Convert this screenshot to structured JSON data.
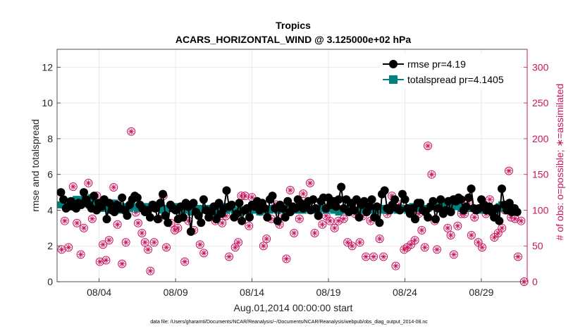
{
  "chart_data": {
    "type": "line",
    "title": "Tropics",
    "subtitle": "ACARS_HORIZONTAL_WIND @ 3.125000e+02 hPa",
    "xlabel": "Aug.01,2014 00:00:00 start",
    "ylabel": "rmse and totalspread",
    "ylabel_right": "# of obs: o=possible; ∗=assimilated",
    "x_ticks": [
      "08/04",
      "08/09",
      "08/14",
      "08/19",
      "08/24",
      "08/29"
    ],
    "x_tick_days": [
      3,
      8,
      13,
      18,
      23,
      28
    ],
    "xlim": [
      0.25,
      31.0
    ],
    "ylim": [
      0,
      13
    ],
    "y_ticks": [
      "0",
      "2",
      "4",
      "6",
      "8",
      "10",
      "12"
    ],
    "ylim_right": [
      0,
      325
    ],
    "y_ticks_right": [
      "0",
      "50",
      "100",
      "150",
      "200",
      "250",
      "300"
    ],
    "grid": true,
    "legend_position": "top-right",
    "legend": [
      "rmse pr=4.19",
      "totalspread pr=4.1405"
    ],
    "footnote": "data file: /Users/gharamti/Documents/NCAR/Reanalysis/~/Documents/NCAR/Reanalysis/webpub/obs_diag_output_2014-08.nc",
    "colors": {
      "rmse": "#000000",
      "spread": "#00807f",
      "obs": "#c8155f"
    },
    "series": [
      {
        "name": "rmse",
        "values": [
          5.0,
          4.6,
          4.1,
          4.2,
          4.5,
          4.2,
          4.1,
          4.4,
          4.3,
          5.0,
          4.6,
          4.3,
          4.1,
          4.8,
          4.0,
          4.4,
          4.2,
          4.6,
          3.5,
          4.4,
          4.0,
          3.9,
          4.3,
          4.1,
          4.7,
          4.0,
          3.7,
          4.3,
          4.6,
          4.8,
          4.7,
          4.3,
          4.1,
          3.9,
          4.0,
          3.6,
          4.3,
          4.1,
          3.5,
          4.4,
          4.9,
          3.7,
          3.3,
          4.3,
          4.1,
          4.0,
          3.5,
          4.2,
          3.6,
          4.4,
          4.2,
          2.8,
          4.4,
          3.9,
          3.7,
          3.3,
          4.6,
          4.0,
          3.6,
          3.9,
          4.2,
          3.5,
          4.4,
          3.8,
          4.1,
          5.1,
          4.2,
          4.3,
          3.6,
          3.8,
          4.4,
          3.4,
          4.0,
          4.1,
          3.6,
          4.3,
          4.2,
          4.5,
          4.0,
          4.4,
          4.1,
          3.6,
          4.6,
          4.8,
          4.1,
          3.4,
          4.3,
          4.1,
          3.6,
          4.5,
          3.9,
          4.2,
          4.1,
          4.6,
          4.4,
          4.1,
          4.3,
          4.5,
          4.0,
          4.6,
          4.1,
          3.7,
          4.5,
          4.7,
          4.1,
          4.7,
          4.3,
          4.5,
          4.2,
          4.6,
          5.3,
          4.1,
          4.6,
          3.9,
          4.4,
          4.0,
          4.6,
          3.6,
          4.3,
          4.5,
          3.9,
          4.2,
          4.6,
          3.6,
          4.2,
          3.3,
          4.9,
          5.1,
          4.1,
          4.0,
          4.3,
          4.6,
          4.1,
          4.0,
          4.9,
          4.6,
          4.1,
          3.8,
          4.1,
          3.5,
          4.4,
          4.4,
          4.0,
          3.9,
          3.6,
          4.2,
          4.5,
          3.5,
          4.1,
          4.6,
          3.8,
          4.0,
          4.5,
          3.9,
          4.6,
          4.5,
          4.7,
          4.6,
          4.0,
          4.2,
          4.7,
          5.2,
          4.1,
          4.0,
          4.1,
          4.6,
          4.3,
          4.0,
          4.2,
          3.9,
          3.6,
          4.1,
          3.4,
          5.2,
          4.3,
          4.0,
          4.4,
          3.9,
          4.1,
          3.9
        ],
        "t0": 0.5,
        "dt": 0.1667
      },
      {
        "name": "totalspread",
        "values": [
          4.3,
          4.3,
          4.4,
          4.4,
          4.5,
          4.5,
          4.6,
          4.6,
          4.5,
          4.4,
          4.5,
          4.6,
          4.7,
          4.5,
          4.3,
          4.2,
          4.1,
          4.1,
          4.2,
          4.0,
          4.2,
          4.4,
          4.1,
          4.2,
          4.0,
          4.2,
          4.1,
          4.1,
          4.2,
          4.2,
          4.1,
          4.2,
          4.2,
          4.2,
          4.1,
          4.2,
          4.3,
          4.2,
          4.2,
          4.1,
          4.0,
          4.1,
          4.1,
          4.2,
          4.1,
          4.2,
          4.1,
          4.0,
          4.1,
          4.0,
          4.0,
          3.9,
          4.0,
          4.1,
          4.0,
          4.1,
          4.0,
          4.0,
          4.1,
          4.0,
          4.0,
          3.9,
          4.0,
          4.1,
          4.2,
          4.0,
          4.1,
          4.1,
          4.0,
          4.0,
          4.0,
          3.9,
          4.0,
          4.0,
          3.9,
          4.0,
          4.1,
          4.0,
          3.9,
          4.0,
          4.0,
          4.0,
          4.0,
          4.1,
          4.1,
          4.0,
          4.1,
          4.1,
          4.0,
          4.0,
          4.1,
          4.1,
          4.0,
          4.0,
          4.0,
          4.0,
          4.1,
          4.1,
          4.0,
          4.0,
          4.0,
          4.0,
          4.1,
          4.1,
          4.0,
          4.1,
          4.1,
          4.0,
          4.0,
          3.9,
          4.0,
          4.0,
          4.0,
          4.0,
          4.1,
          4.0,
          4.0,
          4.0,
          4.1,
          4.1,
          4.0,
          4.0,
          4.0,
          4.0,
          4.0,
          4.1,
          4.1,
          4.0,
          4.1,
          4.0,
          4.1,
          4.1,
          4.0,
          4.1,
          4.1,
          4.1,
          4.0,
          4.0,
          4.2,
          4.1,
          4.1,
          4.1,
          4.1,
          4.0,
          4.1,
          4.2,
          4.2,
          4.3,
          4.3,
          4.4,
          4.4,
          4.3,
          4.3,
          4.3,
          4.3,
          4.2,
          4.2,
          4.1,
          4.1,
          4.1,
          4.1,
          4.1,
          4.1,
          4.0,
          4.1,
          4.0,
          4.1,
          4.2,
          4.2,
          4.1,
          4.1,
          4.0,
          4.2,
          4.3,
          4.1,
          4.0,
          4.0,
          4.0
        ],
        "t0": 0.5,
        "dt": 0.1667
      },
      {
        "name": "obs_possible",
        "axis": "right",
        "points": [
          [
            0.55,
            45
          ],
          [
            0.75,
            85
          ],
          [
            1.0,
            48
          ],
          [
            1.3,
            133
          ],
          [
            1.55,
            82
          ],
          [
            1.8,
            38
          ],
          [
            2.0,
            75
          ],
          [
            2.3,
            138
          ],
          [
            2.55,
            88
          ],
          [
            2.85,
            120
          ],
          [
            3.05,
            28
          ],
          [
            3.25,
            52
          ],
          [
            3.45,
            30
          ],
          [
            3.65,
            58
          ],
          [
            3.95,
            132
          ],
          [
            4.2,
            80
          ],
          [
            4.5,
            25
          ],
          [
            4.75,
            55
          ],
          [
            5.1,
            210
          ],
          [
            5.4,
            97
          ],
          [
            5.55,
            82
          ],
          [
            5.8,
            68
          ],
          [
            6.0,
            55
          ],
          [
            6.2,
            45
          ],
          [
            6.35,
            15
          ],
          [
            6.6,
            55
          ],
          [
            6.9,
            88
          ],
          [
            7.2,
            120
          ],
          [
            7.4,
            48
          ],
          [
            7.7,
            82
          ],
          [
            7.95,
            72
          ],
          [
            8.15,
            75
          ],
          [
            8.4,
            90
          ],
          [
            8.6,
            28
          ],
          [
            8.85,
            85
          ],
          [
            9.2,
            72
          ],
          [
            9.6,
            52
          ],
          [
            9.85,
            40
          ],
          [
            10.2,
            98
          ],
          [
            10.6,
            85
          ],
          [
            10.85,
            95
          ],
          [
            11.05,
            82
          ],
          [
            11.3,
            92
          ],
          [
            11.5,
            35
          ],
          [
            11.9,
            48
          ],
          [
            12.1,
            55
          ],
          [
            12.3,
            120
          ],
          [
            12.55,
            120
          ],
          [
            12.8,
            78
          ],
          [
            13.0,
            118
          ],
          [
            13.3,
            105
          ],
          [
            13.55,
            98
          ],
          [
            13.75,
            50
          ],
          [
            13.95,
            60
          ],
          [
            14.25,
            88
          ],
          [
            14.55,
            108
          ],
          [
            14.8,
            80
          ],
          [
            15.0,
            92
          ],
          [
            15.25,
            32
          ],
          [
            15.5,
            128
          ],
          [
            15.75,
            68
          ],
          [
            16.1,
            88
          ],
          [
            16.35,
            123
          ],
          [
            16.6,
            108
          ],
          [
            16.8,
            138
          ],
          [
            17.1,
            68
          ],
          [
            17.35,
            92
          ],
          [
            17.6,
            80
          ],
          [
            17.85,
            92
          ],
          [
            18.1,
            85
          ],
          [
            18.4,
            75
          ],
          [
            18.65,
            85
          ],
          [
            18.85,
            100
          ],
          [
            19.0,
            88
          ],
          [
            19.25,
            55
          ],
          [
            19.55,
            50
          ],
          [
            19.75,
            95
          ],
          [
            20.05,
            55
          ],
          [
            20.25,
            92
          ],
          [
            20.45,
            35
          ],
          [
            20.75,
            85
          ],
          [
            20.95,
            35
          ],
          [
            21.35,
            60
          ],
          [
            21.6,
            35
          ],
          [
            21.85,
            95
          ],
          [
            22.15,
            120
          ],
          [
            22.4,
            22
          ],
          [
            22.65,
            108
          ],
          [
            22.95,
            45
          ],
          [
            23.15,
            48
          ],
          [
            23.4,
            52
          ],
          [
            23.65,
            58
          ],
          [
            23.9,
            95
          ],
          [
            24.1,
            72
          ],
          [
            24.3,
            48
          ],
          [
            24.5,
            190
          ],
          [
            24.75,
            150
          ],
          [
            24.95,
            85
          ],
          [
            25.1,
            45
          ],
          [
            25.3,
            110
          ],
          [
            25.55,
            100
          ],
          [
            25.8,
            75
          ],
          [
            26.0,
            65
          ],
          [
            26.2,
            38
          ],
          [
            26.45,
            78
          ],
          [
            26.7,
            95
          ],
          [
            26.9,
            95
          ],
          [
            27.15,
            110
          ],
          [
            27.35,
            65
          ],
          [
            27.55,
            90
          ],
          [
            27.8,
            55
          ],
          [
            28.05,
            48
          ],
          [
            28.3,
            95
          ],
          [
            28.55,
            115
          ],
          [
            28.85,
            62
          ],
          [
            29.1,
            68
          ],
          [
            29.35,
            75
          ],
          [
            29.55,
            100
          ],
          [
            29.8,
            155
          ],
          [
            29.95,
            90
          ],
          [
            30.2,
            88
          ],
          [
            30.4,
            35
          ],
          [
            30.6,
            85
          ],
          [
            30.8,
            0
          ]
        ]
      }
    ]
  }
}
